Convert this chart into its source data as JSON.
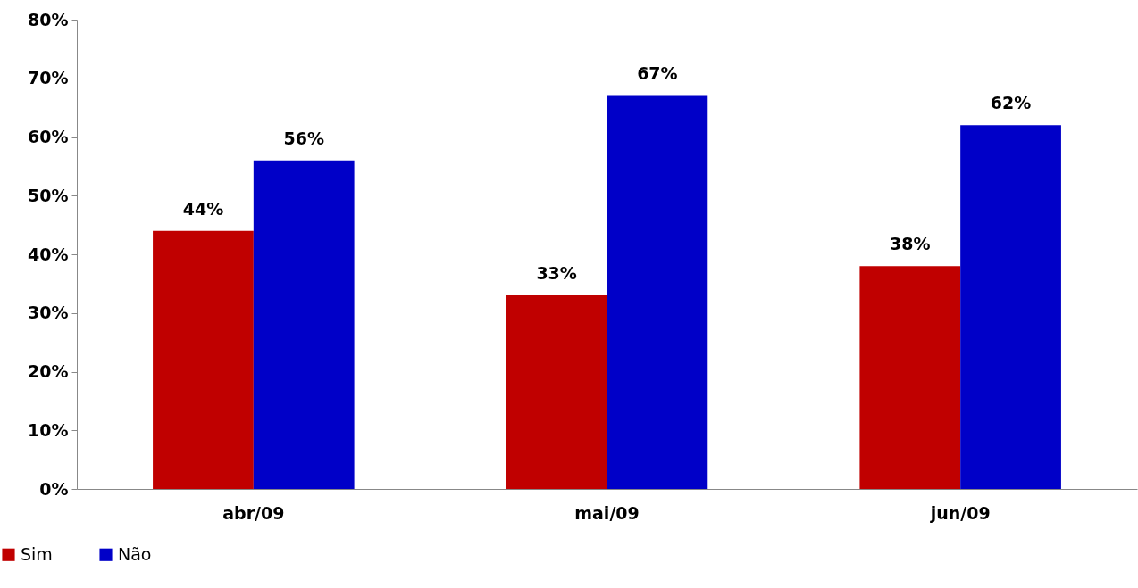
{
  "chart_data": {
    "type": "bar",
    "categories": [
      "abr/09",
      "mai/09",
      "jun/09"
    ],
    "series": [
      {
        "name": "Sim",
        "color": "#c00000",
        "values": [
          44,
          33,
          38
        ],
        "value_labels": [
          "44%",
          "33%",
          "38%"
        ]
      },
      {
        "name": "Não",
        "color": "#0000c8",
        "values": [
          56,
          67,
          62
        ],
        "value_labels": [
          "56%",
          "67%",
          "62%"
        ]
      }
    ],
    "ylim": [
      0,
      80
    ],
    "yticks": [
      {
        "value": 0,
        "label": "0%"
      },
      {
        "value": 10,
        "label": "10%"
      },
      {
        "value": 20,
        "label": "20%"
      },
      {
        "value": 30,
        "label": "30%"
      },
      {
        "value": 40,
        "label": "40%"
      },
      {
        "value": 50,
        "label": "50%"
      },
      {
        "value": 60,
        "label": "60%"
      },
      {
        "value": 70,
        "label": "70%"
      },
      {
        "value": 80,
        "label": "80%"
      }
    ],
    "grid": false,
    "legend": "bottom left"
  }
}
